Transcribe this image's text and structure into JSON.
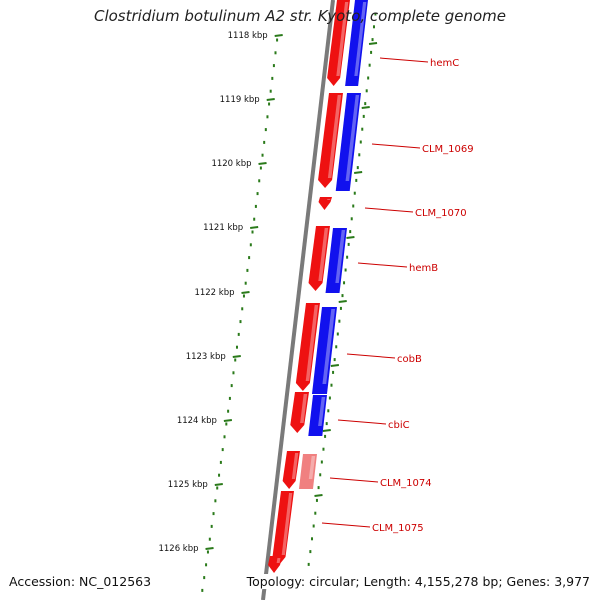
{
  "title": "Clostridium botulinum A2 str. Kyoto, complete genome",
  "footer": {
    "accession": "Accession: NC_012563",
    "topology": "Topology: circular; Length: 4,155,278 bp; Genes: 3,977"
  },
  "colors": {
    "forward_strand": "#ee1111",
    "reverse_strand": "#1111ee",
    "gene_label": "#cc0000",
    "tick": "#2a7a1a",
    "backbone": "#777777"
  },
  "ruler": {
    "ticks": [
      "1118 kbp",
      "1119 kbp",
      "1120 kbp",
      "1121 kbp",
      "1122 kbp",
      "1123 kbp",
      "1124 kbp",
      "1125 kbp",
      "1126 kbp"
    ]
  },
  "genes": [
    "hemC",
    "CLM_1069",
    "CLM_1070",
    "hemB",
    "cobB",
    "cbiC",
    "CLM_1074",
    "CLM_1075"
  ]
}
